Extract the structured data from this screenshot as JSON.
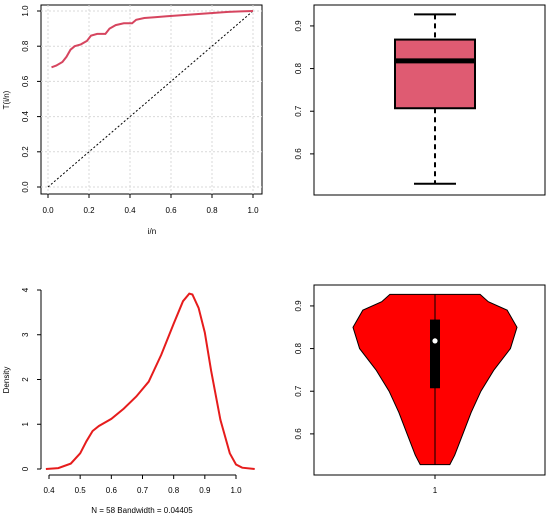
{
  "colors": {
    "ttt_line": "#d6455f",
    "box_fill": "#df5b72",
    "density_line": "#e61c1c",
    "violin_fill": "#ff0000"
  },
  "chart_data": [
    {
      "type": "line",
      "xlabel": "i/n",
      "ylabel": "T(i/n)",
      "xlim": [
        0,
        1
      ],
      "ylim": [
        0,
        1
      ],
      "xticks": [
        "0.0",
        "0.2",
        "0.4",
        "0.6",
        "0.8",
        "1.0"
      ],
      "yticks": [
        "0.0",
        "0.2",
        "0.4",
        "0.6",
        "0.8",
        "1.0"
      ],
      "grid": true,
      "reference_line": {
        "from": [
          0,
          0
        ],
        "to": [
          1,
          1
        ],
        "style": "dotted"
      },
      "series": [
        {
          "x": [
            0.017,
            0.04,
            0.07,
            0.09,
            0.11,
            0.13,
            0.16,
            0.19,
            0.21,
            0.24,
            0.28,
            0.3,
            0.33,
            0.37,
            0.41,
            0.43,
            0.47,
            0.52,
            0.58,
            0.64,
            0.7,
            0.76,
            0.82,
            0.88,
            0.94,
            1.0
          ],
          "y": [
            0.68,
            0.69,
            0.71,
            0.74,
            0.78,
            0.8,
            0.81,
            0.83,
            0.86,
            0.87,
            0.87,
            0.9,
            0.92,
            0.93,
            0.93,
            0.95,
            0.96,
            0.965,
            0.97,
            0.975,
            0.98,
            0.985,
            0.99,
            0.995,
            0.998,
            1.0
          ]
        }
      ]
    },
    {
      "type": "box",
      "ylim": [
        0.52,
        0.935
      ],
      "yticks": [
        "0.6",
        "0.7",
        "0.8",
        "0.9"
      ],
      "stats": {
        "min": 0.53,
        "q1": 0.707,
        "median": 0.818,
        "q3": 0.868,
        "max": 0.927
      }
    },
    {
      "type": "line",
      "ylabel": "Density",
      "xlabel": "N = 58   Bandwidth = 0.04405",
      "xlim": [
        0.4,
        1.06
      ],
      "ylim": [
        0,
        4
      ],
      "xticks": [
        "0.4",
        "0.5",
        "0.6",
        "0.7",
        "0.8",
        "0.9",
        "1.0"
      ],
      "yticks": [
        "0",
        "1",
        "2",
        "3",
        "4"
      ],
      "series": [
        {
          "x": [
            0.39,
            0.43,
            0.47,
            0.5,
            0.52,
            0.54,
            0.56,
            0.6,
            0.64,
            0.68,
            0.72,
            0.76,
            0.8,
            0.83,
            0.85,
            0.86,
            0.88,
            0.9,
            0.92,
            0.95,
            0.98,
            1.0,
            1.02,
            1.06
          ],
          "y": [
            0.0,
            0.02,
            0.12,
            0.35,
            0.62,
            0.85,
            0.96,
            1.12,
            1.35,
            1.62,
            1.95,
            2.55,
            3.25,
            3.75,
            3.92,
            3.9,
            3.6,
            3.05,
            2.2,
            1.1,
            0.35,
            0.1,
            0.03,
            0.0
          ]
        }
      ]
    },
    {
      "type": "violin",
      "ylim": [
        0.52,
        0.935
      ],
      "yticks": [
        "0.6",
        "0.7",
        "0.8",
        "0.9"
      ],
      "xticks": [
        "1"
      ],
      "profile_y": [
        0.528,
        0.55,
        0.6,
        0.65,
        0.7,
        0.75,
        0.8,
        0.85,
        0.89,
        0.91,
        0.927
      ],
      "profile_density": [
        0.18,
        0.24,
        0.34,
        0.44,
        0.56,
        0.72,
        0.92,
        1.0,
        0.88,
        0.65,
        0.55
      ],
      "box": {
        "q1": 0.707,
        "median": 0.818,
        "q3": 0.868,
        "min": 0.528,
        "max": 0.927
      }
    }
  ]
}
